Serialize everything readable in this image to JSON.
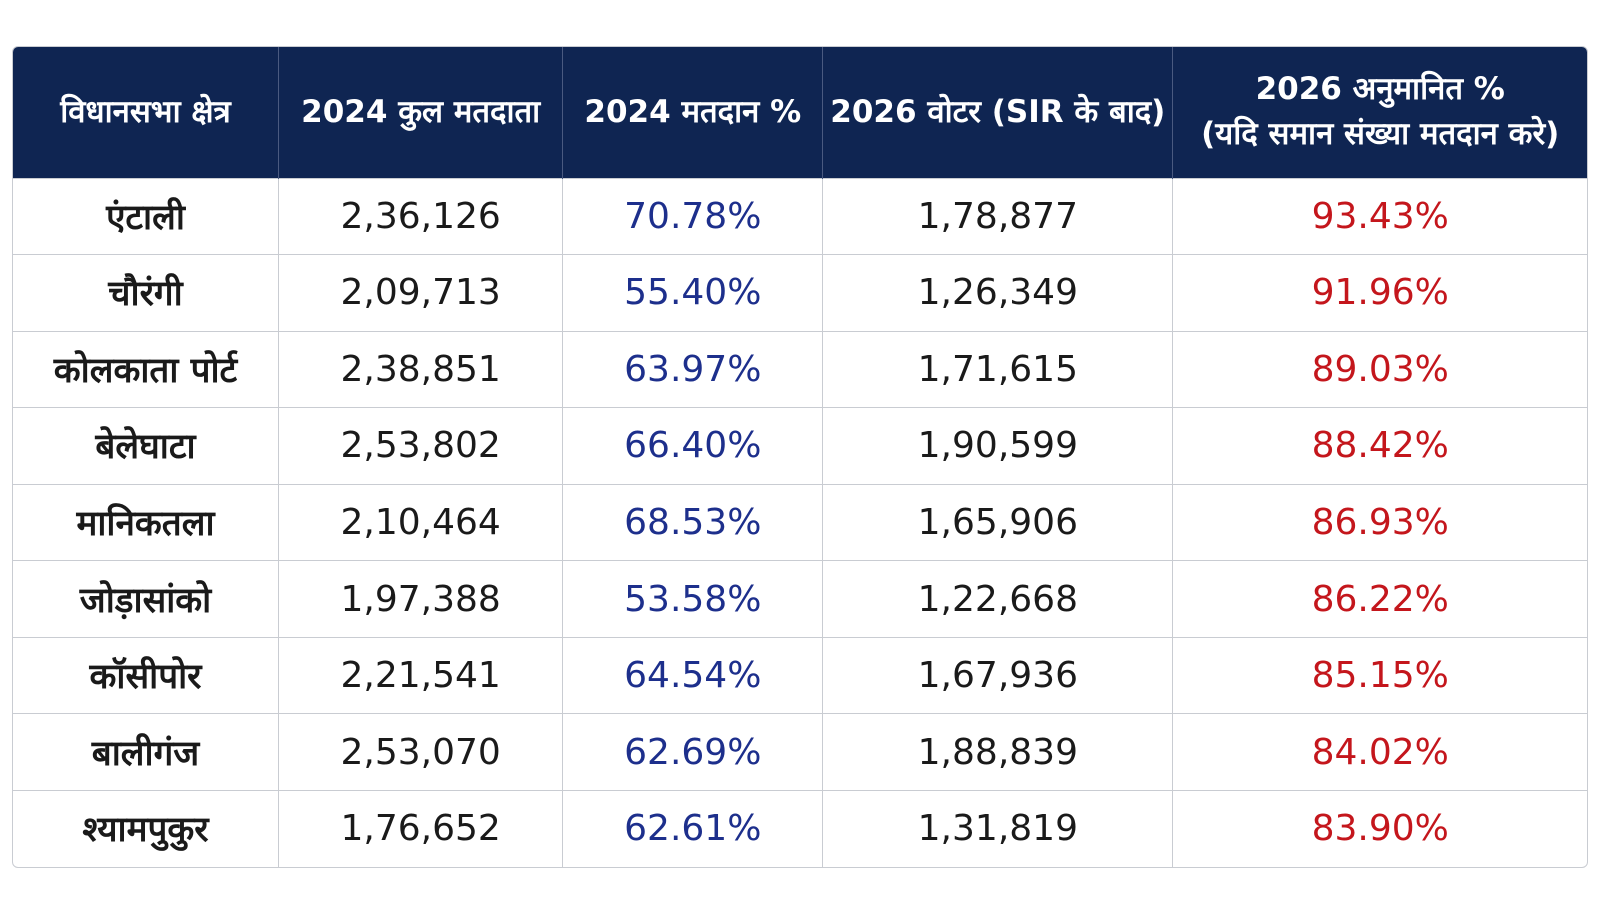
{
  "chart_data": {
    "type": "table",
    "columns": [
      "विधानसभा क्षेत्र",
      "2024 कुल मतदाता",
      "2024 मतदान %",
      "2026 वोटर (SIR के बाद)",
      "2026 अनुमानित %",
      "(यदि समान संख्या मतदान करे)"
    ],
    "rows": [
      {
        "name": "एंटाली",
        "voters_2024": "2,36,126",
        "turnout_2024": "70.78%",
        "voters_2026": "1,78,877",
        "est_2026": "93.43%"
      },
      {
        "name": "चौरंगी",
        "voters_2024": "2,09,713",
        "turnout_2024": "55.40%",
        "voters_2026": "1,26,349",
        "est_2026": "91.96%"
      },
      {
        "name": "कोलकाता पोर्ट",
        "voters_2024": "2,38,851",
        "turnout_2024": "63.97%",
        "voters_2026": "1,71,615",
        "est_2026": "89.03%"
      },
      {
        "name": "बेलेघाटा",
        "voters_2024": "2,53,802",
        "turnout_2024": "66.40%",
        "voters_2026": "1,90,599",
        "est_2026": "88.42%"
      },
      {
        "name": "मानिकतला",
        "voters_2024": "2,10,464",
        "turnout_2024": "68.53%",
        "voters_2026": "1,65,906",
        "est_2026": "86.93%"
      },
      {
        "name": "जोड़ासांको",
        "voters_2024": "1,97,388",
        "turnout_2024": "53.58%",
        "voters_2026": "1,22,668",
        "est_2026": "86.22%"
      },
      {
        "name": "कॉसीपोर",
        "voters_2024": "2,21,541",
        "turnout_2024": "64.54%",
        "voters_2026": "1,67,936",
        "est_2026": "85.15%"
      },
      {
        "name": "बालीगंज",
        "voters_2024": "2,53,070",
        "turnout_2024": "62.69%",
        "voters_2026": "1,88,839",
        "est_2026": "84.02%"
      },
      {
        "name": "श्यामपुकुर",
        "voters_2024": "1,76,652",
        "turnout_2024": "62.61%",
        "voters_2026": "1,31,819",
        "est_2026": "83.90%"
      }
    ]
  },
  "colors": {
    "header_bg": "#0f2552",
    "turnout_text": "#1d2f8c",
    "estimate_text": "#c4161c",
    "grid": "#c9ccd2"
  }
}
